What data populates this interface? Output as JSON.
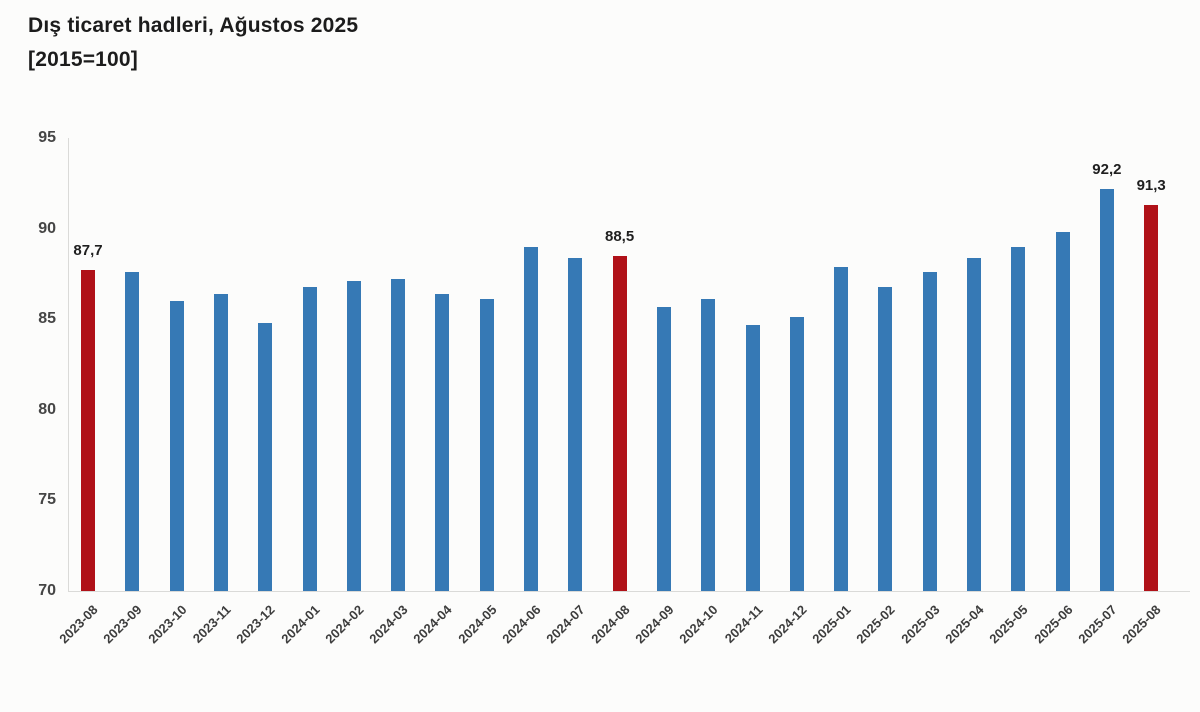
{
  "title": {
    "line1": "Dış ticaret hadleri, Ağustos 2025",
    "line2": "[2015=100]"
  },
  "chart_data": {
    "type": "bar",
    "title": "Dış ticaret hadleri, Ağustos 2025",
    "subtitle": "[2015=100]",
    "xlabel": "",
    "ylabel": "",
    "ylim": [
      70,
      95
    ],
    "yticks": [
      95,
      90,
      85,
      80,
      75,
      70
    ],
    "grid": false,
    "legend": "none",
    "categories": [
      "2023-08",
      "2023-09",
      "2023-10",
      "2023-11",
      "2023-12",
      "2024-01",
      "2024-02",
      "2024-03",
      "2024-04",
      "2024-05",
      "2024-06",
      "2024-07",
      "2024-08",
      "2024-09",
      "2024-10",
      "2024-11",
      "2024-12",
      "2025-01",
      "2025-02",
      "2025-03",
      "2025-04",
      "2025-05",
      "2025-06",
      "2025-07",
      "2025-08"
    ],
    "values": [
      87.7,
      87.6,
      86.0,
      86.4,
      84.8,
      86.8,
      87.1,
      87.2,
      86.4,
      86.1,
      89.0,
      88.4,
      88.5,
      85.7,
      86.1,
      84.7,
      85.1,
      87.9,
      86.8,
      87.6,
      88.4,
      89.0,
      89.8,
      92.2,
      91.3
    ],
    "highlight_categories": [
      "2023-08",
      "2024-08",
      "2025-08"
    ],
    "point_labels": [
      {
        "category": "2023-08",
        "text": "87,7"
      },
      {
        "category": "2024-08",
        "text": "88,5"
      },
      {
        "category": "2025-07",
        "text": "92,2"
      },
      {
        "category": "2025-08",
        "text": "91,3"
      }
    ],
    "colors": {
      "bar": "#3679b5",
      "highlight": "#b01118",
      "axis": "#dadad8",
      "tick_text": "#454545",
      "point_label_text": "#1f1f1f",
      "background": "#fcfcfb"
    }
  }
}
